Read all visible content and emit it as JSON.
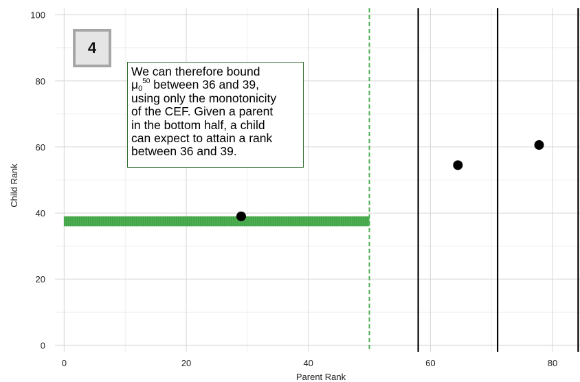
{
  "chart_data": {
    "type": "scatter",
    "xlabel": "Parent Rank",
    "ylabel": "Child Rank",
    "xlim": [
      -1.5,
      84.5
    ],
    "ylim": [
      -2,
      102
    ],
    "x_ticks": [
      0,
      20,
      40,
      60,
      80
    ],
    "y_ticks": [
      0,
      20,
      40,
      60,
      80,
      100
    ],
    "grid": true,
    "points": [
      {
        "x": 29,
        "y": 39
      },
      {
        "x": 64.5,
        "y": 54.5
      },
      {
        "x": 77.8,
        "y": 60.6
      }
    ],
    "vertical_lines": [
      {
        "x": 50,
        "style": "dashed",
        "color": "#4caf50"
      },
      {
        "x": 58,
        "style": "solid",
        "color": "#000000"
      },
      {
        "x": 71,
        "style": "solid",
        "color": "#000000"
      },
      {
        "x": 84.2,
        "style": "solid",
        "color": "#000000"
      }
    ],
    "bound_band": {
      "x_from": 0,
      "x_to": 50,
      "y_from": 36,
      "y_to": 39,
      "color": "#4caf50"
    },
    "badge": "4",
    "annotation": {
      "line1": "We can therefore bound",
      "mu": "μ",
      "mu_sub": "0",
      "mu_sup": "50",
      "line2_rest": " between 36 and 39,",
      "line3": "using only the monotonicity",
      "line4": "of the CEF. Given a parent",
      "line5": "in the bottom half, a child",
      "line6": "can expect to attain a rank",
      "line7": "between 36 and 39."
    }
  }
}
